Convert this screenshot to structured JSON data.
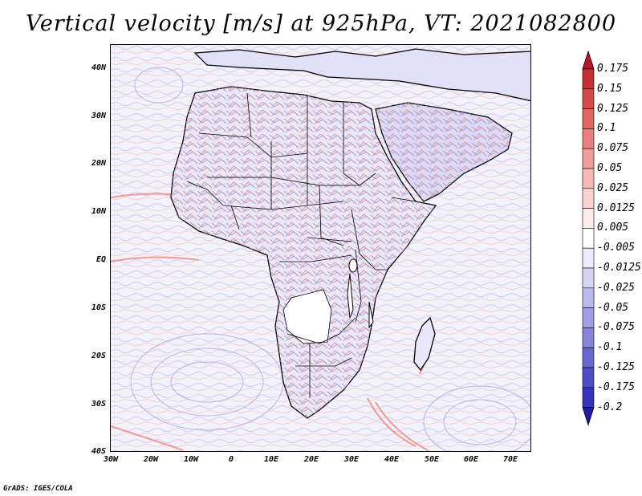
{
  "title": "Vertical velocity [m/s] at 925hPa, VT: 2021082800",
  "credit": "GrADS: IGES/COLA",
  "map": {
    "lat_ticks": [
      "40N",
      "30N",
      "20N",
      "10N",
      "EQ",
      "10S",
      "20S",
      "30S",
      "40S"
    ],
    "lon_ticks": [
      "30W",
      "20W",
      "10W",
      "0",
      "10E",
      "20E",
      "30E",
      "40E",
      "50E",
      "60E",
      "70E"
    ]
  },
  "colorbar": {
    "labels": [
      "0.175",
      "0.15",
      "0.125",
      "0.1",
      "0.075",
      "0.05",
      "0.025",
      "0.0125",
      "0.005",
      "-0.005",
      "-0.0125",
      "-0.025",
      "-0.05",
      "-0.075",
      "-0.1",
      "-0.125",
      "-0.175",
      "-0.2"
    ],
    "colors": [
      "#b2182b",
      "#c53038",
      "#d44a4c",
      "#e06564",
      "#e9807d",
      "#f09c98",
      "#f6b8b4",
      "#fad4d2",
      "#fdecec",
      "#ffffff",
      "#ecebfb",
      "#d6d4f4",
      "#bcbaec",
      "#a19fe3",
      "#8684d9",
      "#6a68cf",
      "#4f4cc4",
      "#3533b8",
      "#1f1d9e"
    ]
  }
}
